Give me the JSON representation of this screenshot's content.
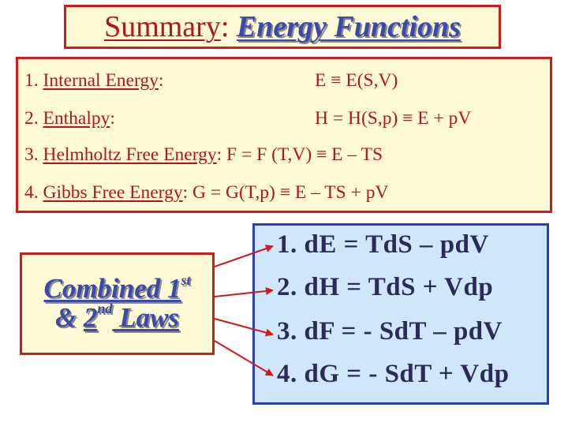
{
  "title": {
    "prefix": "Summary",
    "colon": ": ",
    "subject": "Energy Functions"
  },
  "definitions": [
    {
      "num": "1.",
      "name": "Internal Energy",
      "colon": ":",
      "relation": "E ≡ E(S,V)"
    },
    {
      "num": "2.",
      "name": "Enthalpy",
      "colon": ":",
      "relation": "H = H(S,p) ≡ E + pV"
    },
    {
      "num": "3.",
      "name": "Helmholtz Free Energy",
      "colon": ":",
      "relation": "F = F (T,V) ≡ E – TS"
    },
    {
      "num": "4.",
      "name": "Gibbs Free Energy",
      "colon": ":",
      "relation": "G = G(T,p) ≡ E – TS + pV"
    }
  ],
  "combined": {
    "line1": "Combined 1",
    "line1_sup": "st",
    "line2_prefix": "& ",
    "line2_num": "2",
    "line2_sup": "nd",
    "line2_suffix": " Laws"
  },
  "equations": [
    "1. dE = TdS – pdV",
    "2. dH = TdS + Vdp",
    "3. dF = - SdT – pdV",
    "4. dG = - SdT + Vdp"
  ],
  "colors": {
    "red": "#d11a1a",
    "dark_red_text": "#b5141b",
    "blue_text": "#3b49a8",
    "yellow_bg": "#fffbd6",
    "blue_bg": "#cfe6fb",
    "blue_border": "#2b3fb4"
  }
}
